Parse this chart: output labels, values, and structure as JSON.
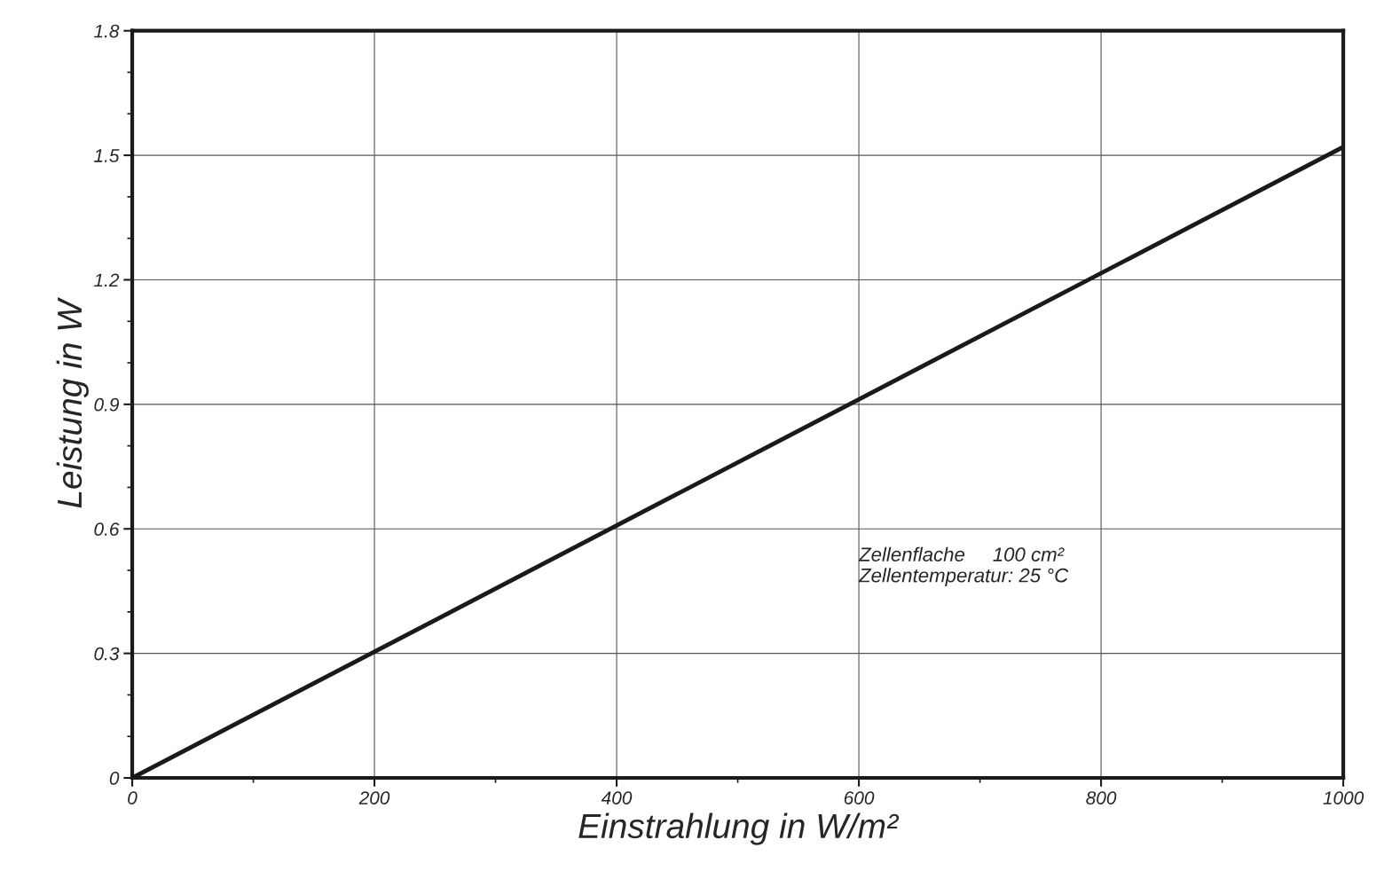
{
  "chart_data": {
    "type": "line",
    "xlabel": "Einstrahlung in W/m²",
    "ylabel": "Leistung in W",
    "x": [
      0,
      1000
    ],
    "series": [
      {
        "color": "#1a1a1a",
        "values": [
          0,
          1.52
        ]
      }
    ],
    "xlim": [
      0,
      1000
    ],
    "ylim": [
      0,
      1.8
    ],
    "xticks": [
      0,
      {
        "value": 100,
        "label": null
      },
      200,
      {
        "value": 300,
        "label": null
      },
      400,
      {
        "value": 500,
        "label": null
      },
      600,
      {
        "value": 700,
        "label": null
      },
      800,
      {
        "value": 900,
        "label": null
      },
      1000
    ],
    "yticks": [
      0,
      {
        "value": 0.1,
        "label": null
      },
      {
        "value": 0.2,
        "label": null
      },
      0.3,
      {
        "value": 0.4,
        "label": null
      },
      {
        "value": 0.5,
        "label": null
      },
      0.6,
      {
        "value": 0.7,
        "label": null
      },
      {
        "value": 0.8,
        "label": null
      },
      0.9,
      {
        "value": 1.0,
        "label": null
      },
      {
        "value": 1.1,
        "label": null
      },
      1.2,
      {
        "value": 1.3,
        "label": null
      },
      {
        "value": 1.4,
        "label": null
      },
      1.5,
      {
        "value": 1.6,
        "label": null
      },
      {
        "value": 1.7,
        "label": null
      },
      1.8
    ],
    "grid": true,
    "marker": "none",
    "line_style": "solid",
    "annotations": [
      "Zellenflache     100 cm²",
      "Zellentemperatur: 25 °C"
    ]
  }
}
